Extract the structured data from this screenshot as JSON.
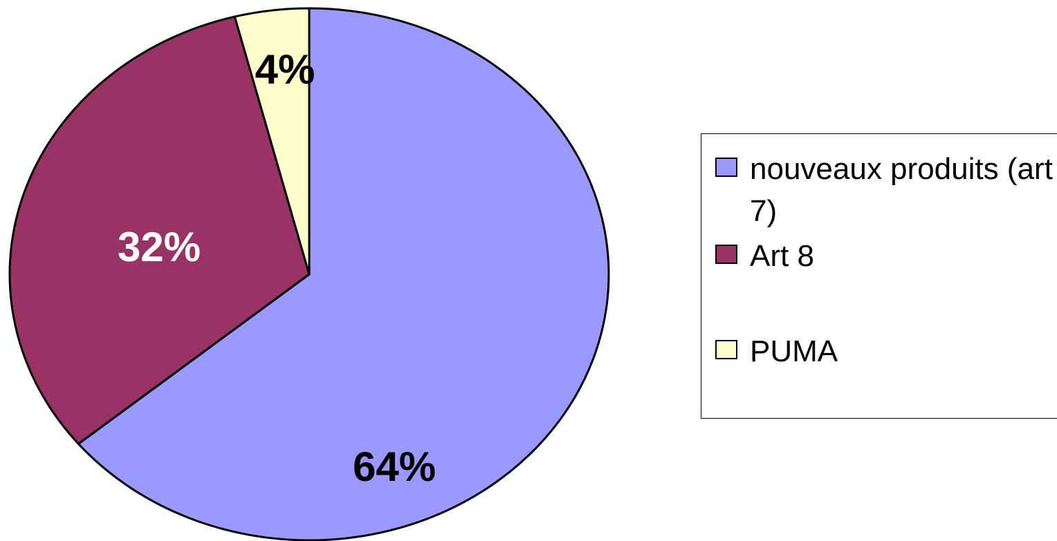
{
  "chart_data": {
    "type": "pie",
    "categories": [
      "nouveaux produits (art 7)",
      "Art 8",
      "PUMA"
    ],
    "values": [
      64,
      32,
      4
    ],
    "value_labels": [
      "64%",
      "32%",
      "4%"
    ],
    "colors": [
      "#9999ff",
      "#993366",
      "#ffffcc"
    ],
    "legend": "right"
  }
}
